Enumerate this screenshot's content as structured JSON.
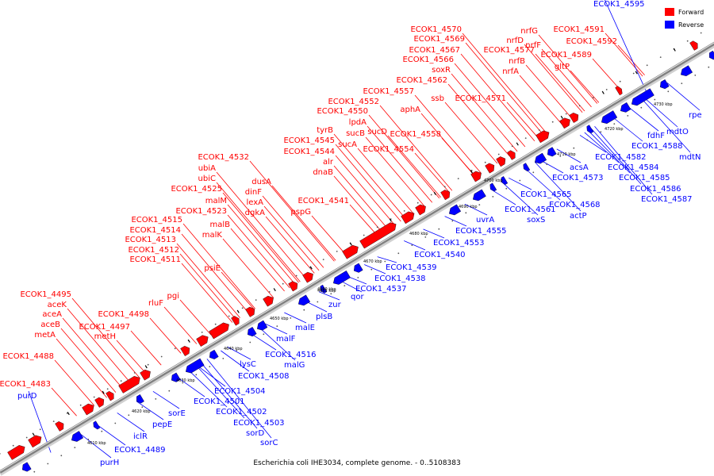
{
  "caption": "Escherichia coli IHE3034, complete genome. - 0..5108383",
  "legend": [
    {
      "label": "Forward",
      "color": "#ff0000"
    },
    {
      "label": "Reverse",
      "color": "#0000ff"
    }
  ],
  "colors": {
    "forward": "#ff0000",
    "reverse": "#0000ff",
    "axis": "#808080"
  },
  "ticks": [
    "4610 kbp",
    "4620 kbp",
    "4630 kbp",
    "4640 kbp",
    "4650 kbp",
    "4660 kbp",
    "4665 kbp",
    "4670 kbp",
    "4680 kbp",
    "4690 kbp",
    "4700 kbp",
    "4710 kbp",
    "4720 kbp",
    "4730 kbp"
  ],
  "forward_genes": [
    "ECOK1_4483",
    "ECOK1_4488",
    "metA",
    "aceB",
    "aceA",
    "aceK",
    "ECOK1_4495",
    "metH",
    "ECOK1_4497",
    "ECOK1_4498",
    "rluF",
    "pgi",
    "psiE",
    "ECOK1_4511",
    "ECOK1_4512",
    "ECOK1_4513",
    "ECOK1_4514",
    "ECOK1_4515",
    "malK",
    "malB",
    "ECOK1_4523",
    "malM",
    "ECOK1_4525",
    "ubiC",
    "ubiA",
    "ECOK1_4532",
    "dgkA",
    "lexA",
    "dinF",
    "dusA",
    "pspG",
    "ECOK1_4541",
    "dnaB",
    "alr",
    "ECOK1_4544",
    "ECOK1_4545",
    "tyrB",
    "sucA",
    "sucB",
    "lpdA",
    "ECOK1_4550",
    "ECOK1_4552",
    "sucD",
    "ECOK1_4554",
    "ECOK1_4557",
    "ECOK1_4558",
    "aphA",
    "ssb",
    "ECOK1_4562",
    "soxR",
    "ECOK1_4566",
    "ECOK1_4567",
    "ECOK1_4569",
    "ECOK1_4570",
    "ECOK1_4571",
    "ECOK1_4577",
    "nrfA",
    "nrfB",
    "nrfD",
    "nrfF",
    "nrfG",
    "gltP",
    "ECOK1_4589",
    "ECOK1_4591",
    "ECOK1_4592"
  ],
  "reverse_genes": [
    "purD",
    "purH",
    "ECOK1_4489",
    "iclR",
    "pepE",
    "sorE",
    "ECOK1_4501",
    "ECOK1_4502",
    "ECOK1_4503",
    "sorD",
    "sorC",
    "ECOK1_4504",
    "ECOK1_4508",
    "lysC",
    "malG",
    "ECOK1_4516",
    "malF",
    "malE",
    "plsB",
    "zur",
    "qor",
    "ECOK1_4537",
    "ECOK1_4538",
    "ECOK1_4539",
    "ECOK1_4540",
    "ECOK1_4553",
    "ECOK1_4555",
    "uvrA",
    "soxS",
    "ECOK1_4561",
    "ECOK1_4565",
    "ECOK1_4568",
    "actP",
    "ECOK1_4573",
    "acsA",
    "ECOK1_4582",
    "ECOK1_4584",
    "ECOK1_4585",
    "ECOK1_4586",
    "ECOK1_4587",
    "ECOK1_4588",
    "fdhF",
    "mdtO",
    "mdtN",
    "rpe",
    "ECOK1_4595"
  ]
}
